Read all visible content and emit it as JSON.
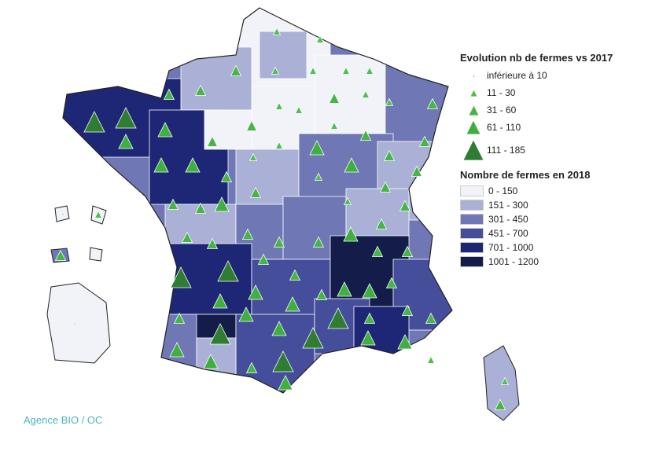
{
  "legend_triangles": {
    "title": "Evolution nb de fermes vs 2017",
    "items": [
      {
        "label": "inférieure à 10",
        "color": "#4fbf4f"
      },
      {
        "label": "11 - 30",
        "color": "#4fbf4f"
      },
      {
        "label": "31 - 60",
        "color": "#45b545"
      },
      {
        "label": "61 - 110",
        "color": "#3fb03f"
      },
      {
        "label": "111 - 185",
        "color": "#2e7d32"
      }
    ]
  },
  "legend_choropleth": {
    "title": "Nombre de fermes en 2018",
    "items": [
      {
        "label": "0 - 150",
        "color": "#f1f3f9"
      },
      {
        "label": "151 - 300",
        "color": "#aab0d6"
      },
      {
        "label": "301 - 450",
        "color": "#6f77b5"
      },
      {
        "label": "451 - 700",
        "color": "#454e9a"
      },
      {
        "label": "701 - 1000",
        "color": "#1e2775"
      },
      {
        "label": "1001 - 1200",
        "color": "#141c4a"
      }
    ]
  },
  "source": "Agence BIO / OC"
}
